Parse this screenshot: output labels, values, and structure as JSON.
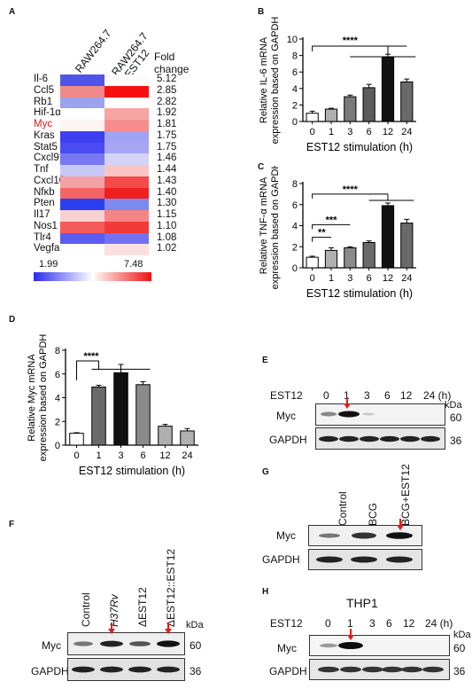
{
  "panel_labels": {
    "A": "A",
    "B": "B",
    "C": "C",
    "D": "D",
    "E": "E",
    "F": "F",
    "G": "G",
    "H": "H"
  },
  "heatmap": {
    "col_headers": [
      "RAW264.7",
      "RAW264.7\n+EST12"
    ],
    "fold_header": "Fold\nchange",
    "rows": [
      {
        "gene": "Il-6",
        "fold": "5.12",
        "c1": "#4f55e8",
        "c2": "#fdfafa"
      },
      {
        "gene": "Ccl5",
        "fold": "2.85",
        "c1": "#f08a8a",
        "c2": "#f81010"
      },
      {
        "gene": "Rb1",
        "fold": "2.82",
        "c1": "#9ba3ef",
        "c2": "#ffffff"
      },
      {
        "gene": "Hif-1α",
        "fold": "1.92",
        "c1": "#ffffff",
        "c2": "#f8a4a4"
      },
      {
        "gene": "Myc",
        "fold": "1.81",
        "c1": "#fdf3f3",
        "c2": "#f78c8c",
        "highlight": true
      },
      {
        "gene": "Kras",
        "fold": "1.75",
        "c1": "#3f3ff2",
        "c2": "#a2a2f3"
      },
      {
        "gene": "Stat5",
        "fold": "1.75",
        "c1": "#4b4bf2",
        "c2": "#a6a6f2"
      },
      {
        "gene": "Cxcl9",
        "fold": "1.46",
        "c1": "#7878f2",
        "c2": "#d3d3f8"
      },
      {
        "gene": "Tnf",
        "fold": "1.44",
        "c1": "#c7c7f8",
        "c2": "#f9c4c4"
      },
      {
        "gene": "Cxcl10",
        "fold": "1.43",
        "c1": "#f3a3a3",
        "c2": "#f24a4a"
      },
      {
        "gene": "Nfκb",
        "fold": "1.40",
        "c1": "#f46464",
        "c2": "#f11e1e"
      },
      {
        "gene": "Pten",
        "fold": "1.30",
        "c1": "#2a40ee",
        "c2": "#7c8af0"
      },
      {
        "gene": "Il17",
        "fold": "1.15",
        "c1": "#f9d0d0",
        "c2": "#f68484"
      },
      {
        "gene": "Nos1",
        "fold": "1.10",
        "c1": "#f55a5a",
        "c2": "#f33a3a"
      },
      {
        "gene": "Tlr4",
        "fold": "1.08",
        "c1": "#5c5cf0",
        "c2": "#7272f0"
      },
      {
        "gene": "Vegfa",
        "fold": "1.02",
        "c1": "#ffffff",
        "c2": "#fbe0e0"
      }
    ],
    "scale_min": "1.99",
    "scale_max": "7.48",
    "colors": {
      "low": "#2a2aee",
      "mid": "#ffffff",
      "high": "#f01010",
      "highlight_text": "#e01818"
    }
  },
  "chart_data": [
    {
      "id": "B",
      "type": "bar",
      "categories": [
        "0",
        "1",
        "3",
        "6",
        "12",
        "24"
      ],
      "values": [
        1.0,
        1.5,
        3.0,
        4.1,
        7.8,
        4.8
      ],
      "errors": [
        0.25,
        0.1,
        0.2,
        0.4,
        0.35,
        0.35
      ],
      "ylabel": "Relative IL-6 mRNA\nexpression based on GAPDH",
      "xlabel": "EST12 stimulation (h)",
      "ylim": [
        0,
        10
      ],
      "yticks": [
        "0",
        "2",
        "4",
        "6",
        "8",
        "10"
      ],
      "significance": [
        "****"
      ],
      "bar_fills": [
        "#ffffff",
        "#b0b0b0",
        "#7a7a7a",
        "#5c5c5c",
        "#111111",
        "#6a6a6a"
      ]
    },
    {
      "id": "C",
      "type": "bar",
      "categories": [
        "0",
        "1",
        "3",
        "6",
        "12",
        "24"
      ],
      "values": [
        1.0,
        1.65,
        1.9,
        2.4,
        5.9,
        4.25
      ],
      "errors": [
        0.1,
        0.25,
        0.1,
        0.15,
        0.25,
        0.35
      ],
      "ylabel": "Relative TNF-α mRNA\nexpression based on GAPDH",
      "xlabel": "EST12 stimulation (h)",
      "ylim": [
        0,
        8
      ],
      "yticks": [
        "0",
        "2",
        "4",
        "6",
        "8"
      ],
      "significance": [
        "**",
        "***",
        "****"
      ],
      "bar_fills": [
        "#ffffff",
        "#b0b0b0",
        "#8a8a8a",
        "#6a6a6a",
        "#111111",
        "#6a6a6a"
      ]
    },
    {
      "id": "D",
      "type": "bar",
      "categories": [
        "0",
        "1",
        "3",
        "6",
        "12",
        "24"
      ],
      "values": [
        1.0,
        4.9,
        6.1,
        5.1,
        1.6,
        1.2
      ],
      "errors": [
        0.05,
        0.15,
        0.7,
        0.25,
        0.15,
        0.2
      ],
      "ylabel": "Relative Myc mRNA\nexpression based on GAPDH",
      "xlabel": "EST12 stimulation (h)",
      "ylim": [
        0,
        8
      ],
      "yticks": [
        "0",
        "2",
        "4",
        "6",
        "8"
      ],
      "significance": [
        "****"
      ],
      "bar_fills": [
        "#ffffff",
        "#6a6a6a",
        "#111111",
        "#8a8a8a",
        "#b0b0b0",
        "#b0b0b0"
      ]
    }
  ],
  "blot_E": {
    "header_prefix": "EST12",
    "lanes": [
      "0",
      "1",
      "3",
      "6",
      "12",
      "24 (h)"
    ],
    "kda": "kDa",
    "rows": [
      {
        "name": "Myc",
        "size": "60"
      },
      {
        "name": "GAPDH",
        "size": "36"
      }
    ]
  },
  "blot_G": {
    "lanes": [
      "Control",
      "BCG",
      "BCG+EST12"
    ],
    "rows": [
      {
        "name": "Myc"
      },
      {
        "name": "GAPDH"
      }
    ]
  },
  "blot_F": {
    "lanes": [
      "Control",
      "H37Rv",
      "ΔEST12",
      "ΔEST12::EST12"
    ],
    "kda": "kDa",
    "rows": [
      {
        "name": "Myc",
        "size": "60"
      },
      {
        "name": "GAPDH",
        "size": "36"
      }
    ]
  },
  "blot_H": {
    "title": "THP1",
    "header_prefix": "EST12",
    "lanes": [
      "0",
      "1",
      "3",
      "6",
      "12",
      "24 (h)"
    ],
    "kda": "kDa",
    "rows": [
      {
        "name": "Myc",
        "size": "60"
      },
      {
        "name": "GAPDH",
        "size": "36"
      }
    ]
  }
}
